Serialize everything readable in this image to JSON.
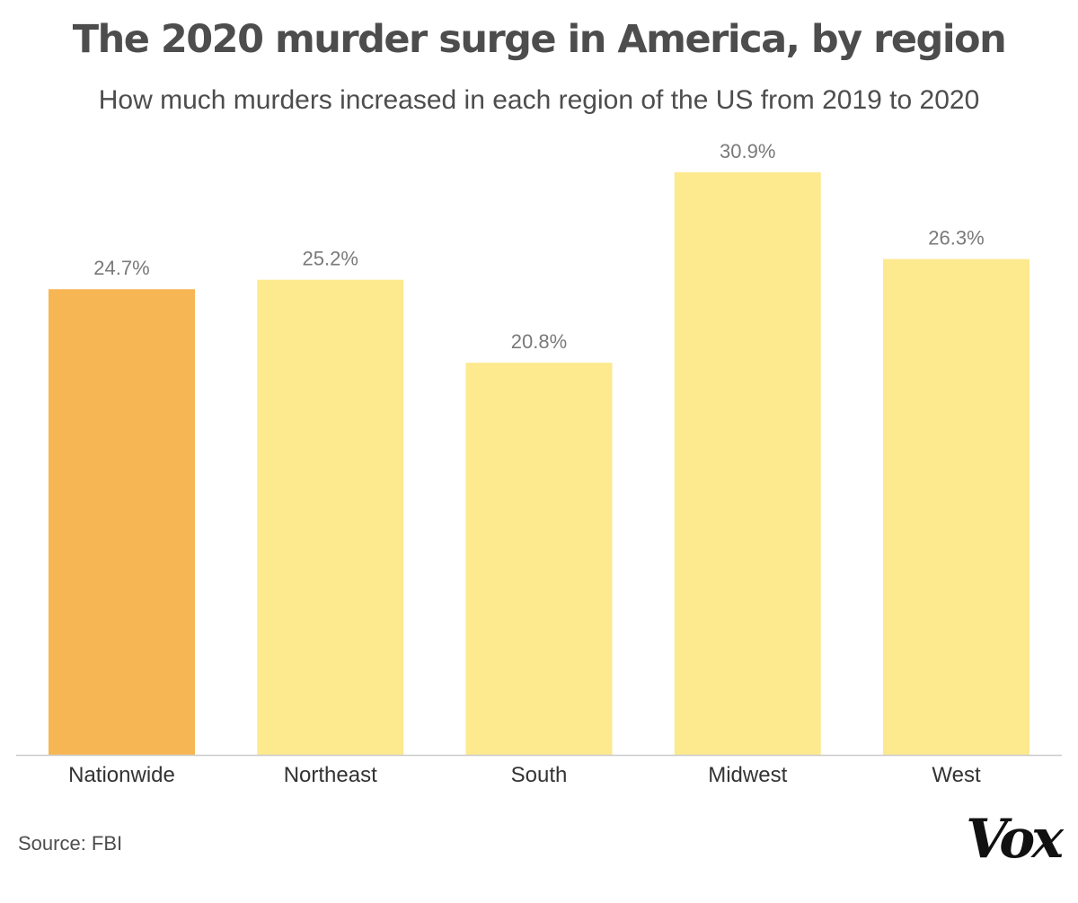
{
  "chart_data": {
    "type": "bar",
    "title": "The 2020 murder surge in America, by region",
    "subtitle": "How much murders increased in each region of the US from 2019 to 2020",
    "categories": [
      "Nationwide",
      "Northeast",
      "South",
      "Midwest",
      "West"
    ],
    "values": [
      24.7,
      25.2,
      20.8,
      30.9,
      26.3
    ],
    "value_labels": [
      "24.7%",
      "25.2%",
      "20.8%",
      "30.9%",
      "26.3%"
    ],
    "highlight_category": "Nationwide",
    "colors": {
      "highlight": "#f6b653",
      "default": "#fde98e",
      "axis": "#cccccc"
    },
    "xlabel": "",
    "ylabel": "",
    "ylim": [
      0,
      31
    ],
    "grid": false
  },
  "footer": {
    "source": "Source: FBI",
    "logo": "Vox"
  }
}
